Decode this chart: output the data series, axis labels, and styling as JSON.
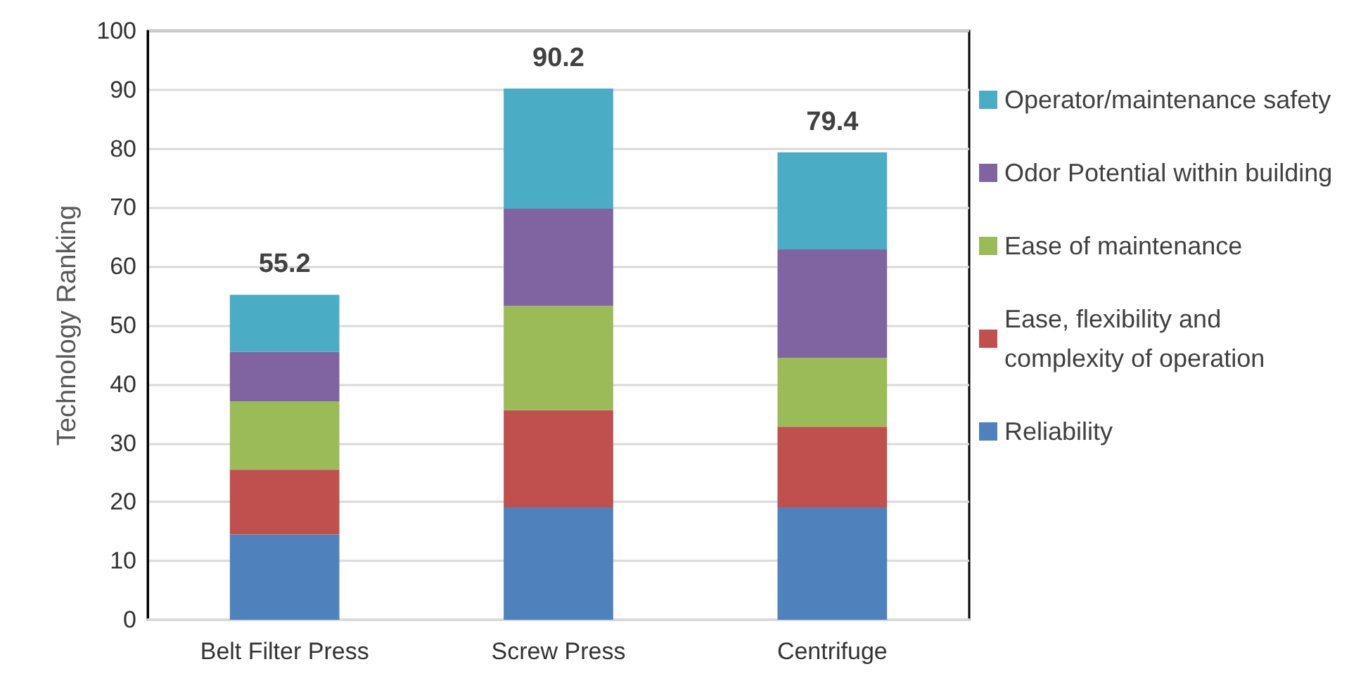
{
  "chart_data": {
    "type": "bar",
    "stacked": true,
    "ylabel": "Technology Ranking",
    "categories": [
      "Belt Filter Press",
      "Screw Press",
      "Centrifuge"
    ],
    "series": [
      {
        "name": "Reliability",
        "color": "#4f81bd",
        "values": [
          14.5,
          19.1,
          19.1
        ]
      },
      {
        "name": "Ease, flexibility and complexity of operation",
        "color": "#c0504d",
        "values": [
          11.0,
          16.5,
          13.7
        ]
      },
      {
        "name": "Ease of maintenance",
        "color": "#9bbb59",
        "values": [
          11.6,
          17.7,
          11.7
        ]
      },
      {
        "name": "Odor Potential within building",
        "color": "#8064a2",
        "values": [
          8.4,
          16.5,
          18.4
        ]
      },
      {
        "name": "Operator/maintenance safety",
        "color": "#4bacc6",
        "values": [
          9.7,
          20.4,
          16.5
        ]
      }
    ],
    "totals": [
      "55.2",
      "90.2",
      "79.4"
    ],
    "ylim": [
      0,
      100
    ],
    "yticks": [
      0,
      10,
      20,
      30,
      40,
      50,
      60,
      70,
      80,
      90,
      100
    ],
    "grid": "y",
    "legend": "right"
  }
}
